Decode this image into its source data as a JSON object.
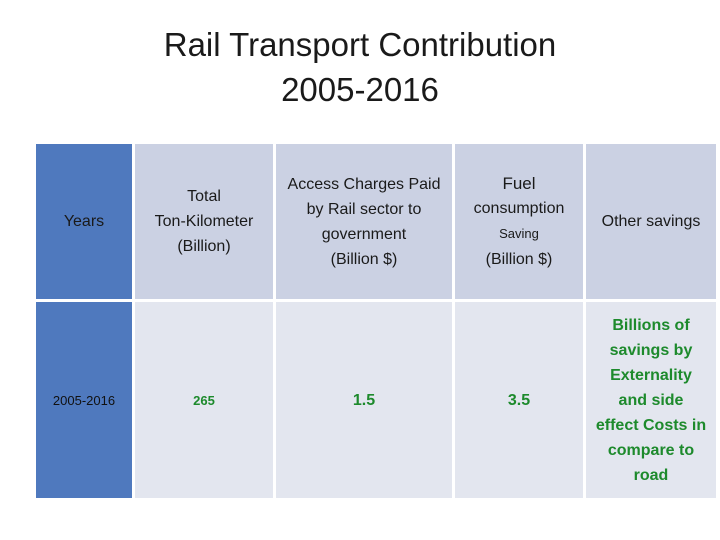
{
  "title": {
    "line1": "Rail Transport Contribution",
    "line2": "2005-2016"
  },
  "table": {
    "headers": {
      "years": "Years",
      "tonkm": [
        "Total",
        "Ton-Kilometer",
        "(Billion)"
      ],
      "access": [
        "Access Charges Paid",
        "by Rail sector to",
        "government",
        "(Billion $)"
      ],
      "fuel": [
        "Fuel",
        "consumption",
        "Saving",
        "(Billion $)"
      ],
      "other": "Other savings"
    },
    "row": {
      "years": "2005-2016",
      "tonkm": "265",
      "access": "1.5",
      "fuel": "3.5",
      "other": [
        "Billions of",
        "savings by",
        "Externality",
        "and side",
        "effect Costs in",
        "compare to",
        "road"
      ]
    }
  },
  "colors": {
    "header_blue": "#4f79be",
    "cell_lavender": "#cbd1e3",
    "value_green": "#1d8a2c"
  }
}
